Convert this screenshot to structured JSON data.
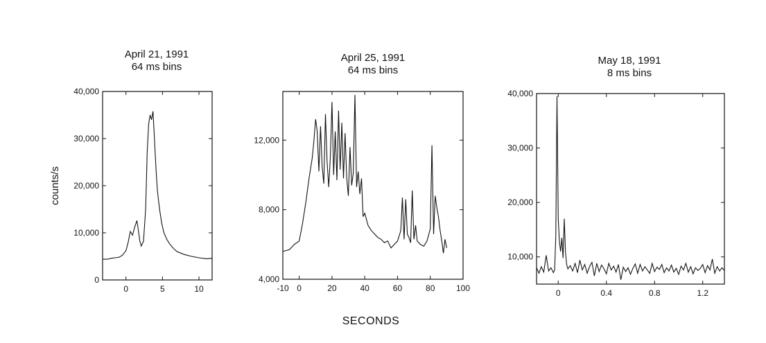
{
  "figure": {
    "ylabel": "counts/s",
    "xlabel": "SECONDS"
  },
  "chart_data": [
    {
      "type": "line",
      "title": "April 21, 1991",
      "subtitle": "64 ms bins",
      "xlim": [
        -3.2,
        11.8
      ],
      "ylim": [
        0,
        40000
      ],
      "xticks": [
        0,
        5,
        10
      ],
      "xtick_labels": [
        "0",
        "5",
        "10"
      ],
      "yticks": [
        0,
        10000,
        20000,
        30000,
        40000
      ],
      "ytick_labels": [
        "0",
        "10,000",
        "20,000",
        "30,000",
        "40,000"
      ],
      "series": [
        {
          "x": [
            -3.2,
            -2.5,
            -2,
            -1.5,
            -1,
            -0.5,
            0,
            0.3,
            0.6,
            0.9,
            1.2,
            1.5,
            1.7,
            1.9,
            2.1,
            2.4,
            2.7,
            2.9,
            3.1,
            3.3,
            3.5,
            3.7,
            3.8,
            3.9,
            4.0,
            4.1,
            4.3,
            4.6,
            4.9,
            5.2,
            5.6,
            6,
            6.5,
            7,
            8,
            9,
            10,
            11,
            11.8
          ],
          "y": [
            4400,
            4400,
            4600,
            4700,
            4800,
            5200,
            6200,
            8000,
            10300,
            9500,
            11200,
            12600,
            10500,
            8300,
            7200,
            8200,
            15000,
            27000,
            33000,
            35000,
            34000,
            35800,
            33000,
            30000,
            27000,
            24000,
            19000,
            15000,
            12000,
            10000,
            8600,
            7600,
            6700,
            6000,
            5400,
            5000,
            4700,
            4500,
            4600
          ]
        }
      ]
    },
    {
      "type": "line",
      "title": "April 25, 1991",
      "subtitle": "64 ms bins",
      "xlim": [
        -10,
        100
      ],
      "ylim": [
        4000,
        14800
      ],
      "xticks": [
        -10,
        0,
        20,
        40,
        60,
        80,
        100
      ],
      "xtick_labels": [
        "-10",
        "0",
        "20",
        "40",
        "60",
        "80",
        "100"
      ],
      "yticks": [
        4000,
        8000,
        12000
      ],
      "ytick_labels": [
        "4,000",
        "8,000",
        "12,000"
      ],
      "series": [
        {
          "x": [
            -10,
            -6,
            -3,
            0,
            2,
            4,
            6,
            8,
            9,
            10,
            11,
            12,
            13,
            14,
            15,
            16,
            17,
            18,
            19,
            20,
            21,
            22,
            23,
            24,
            25,
            26,
            27,
            28,
            29,
            30,
            31,
            32,
            33,
            34,
            35,
            36,
            37,
            38,
            39,
            40,
            42,
            44,
            46,
            48,
            50,
            52,
            54,
            56,
            58,
            60,
            62,
            63,
            64,
            65,
            66,
            67,
            68,
            69,
            70,
            71,
            72,
            74,
            76,
            78,
            80,
            81,
            82,
            83,
            84,
            85,
            86,
            87,
            88,
            89,
            90
          ],
          "y": [
            5600,
            5700,
            6000,
            6200,
            7200,
            8400,
            9800,
            11000,
            12000,
            13200,
            12500,
            10200,
            12800,
            10500,
            9500,
            13500,
            10800,
            9300,
            11000,
            14200,
            10000,
            12500,
            9700,
            13700,
            10300,
            13000,
            9800,
            12400,
            9800,
            8800,
            11600,
            9400,
            10100,
            14600,
            9300,
            10200,
            8900,
            9800,
            7600,
            7800,
            7100,
            6800,
            6600,
            6400,
            6300,
            6100,
            6200,
            5800,
            6000,
            6200,
            6800,
            8700,
            6300,
            8600,
            6600,
            6400,
            6100,
            9100,
            6300,
            7100,
            6200,
            6000,
            5900,
            6200,
            6900,
            11700,
            6600,
            8800,
            8100,
            7600,
            6800,
            6200,
            5500,
            6300,
            5800
          ]
        }
      ]
    },
    {
      "type": "line",
      "title": "May 18, 1991",
      "subtitle": "8 ms bins",
      "xlim": [
        -0.18,
        1.38
      ],
      "ylim": [
        5000,
        40000
      ],
      "xticks": [
        0,
        0.4,
        0.8,
        1.2
      ],
      "xtick_labels": [
        "0",
        "0.4",
        "0.8",
        "1.2"
      ],
      "yticks": [
        10000,
        20000,
        30000,
        40000
      ],
      "ytick_labels": [
        "10,000",
        "20,000",
        "30,000",
        "40,000"
      ],
      "series": [
        {
          "x": [
            -0.18,
            -0.16,
            -0.14,
            -0.12,
            -0.1,
            -0.08,
            -0.06,
            -0.04,
            -0.03,
            -0.02,
            -0.01,
            0.0,
            0.01,
            0.02,
            0.03,
            0.04,
            0.05,
            0.06,
            0.07,
            0.08,
            0.1,
            0.12,
            0.14,
            0.16,
            0.18,
            0.2,
            0.22,
            0.24,
            0.26,
            0.28,
            0.3,
            0.32,
            0.34,
            0.36,
            0.38,
            0.4,
            0.42,
            0.44,
            0.46,
            0.48,
            0.5,
            0.52,
            0.54,
            0.56,
            0.58,
            0.6,
            0.62,
            0.64,
            0.66,
            0.68,
            0.7,
            0.72,
            0.74,
            0.76,
            0.78,
            0.8,
            0.82,
            0.84,
            0.86,
            0.88,
            0.9,
            0.92,
            0.94,
            0.96,
            0.98,
            1.0,
            1.02,
            1.04,
            1.06,
            1.08,
            1.1,
            1.12,
            1.14,
            1.16,
            1.18,
            1.2,
            1.22,
            1.24,
            1.26,
            1.28,
            1.3,
            1.32,
            1.34,
            1.36,
            1.38
          ],
          "y": [
            8000,
            7000,
            8200,
            7200,
            10300,
            7400,
            8000,
            7100,
            7600,
            14000,
            39500,
            17000,
            12800,
            11000,
            13500,
            9800,
            17000,
            11000,
            8600,
            7800,
            8400,
            7400,
            8800,
            7100,
            9400,
            7600,
            8600,
            7000,
            8200,
            9000,
            6500,
            8800,
            7300,
            8500,
            7800,
            6900,
            8800,
            7600,
            8300,
            7200,
            8600,
            5800,
            8100,
            7300,
            8000,
            6800,
            7900,
            8700,
            7000,
            8600,
            7400,
            8200,
            7600,
            7000,
            8800,
            7300,
            8100,
            7700,
            8600,
            7100,
            8000,
            7400,
            8500,
            7200,
            7900,
            6800,
            8300,
            7600,
            8800,
            7200,
            8200,
            6900,
            8000,
            7500,
            7900,
            8600,
            7100,
            8400,
            7600,
            9600,
            7000,
            8200,
            7400,
            8000,
            7500
          ]
        }
      ]
    }
  ]
}
